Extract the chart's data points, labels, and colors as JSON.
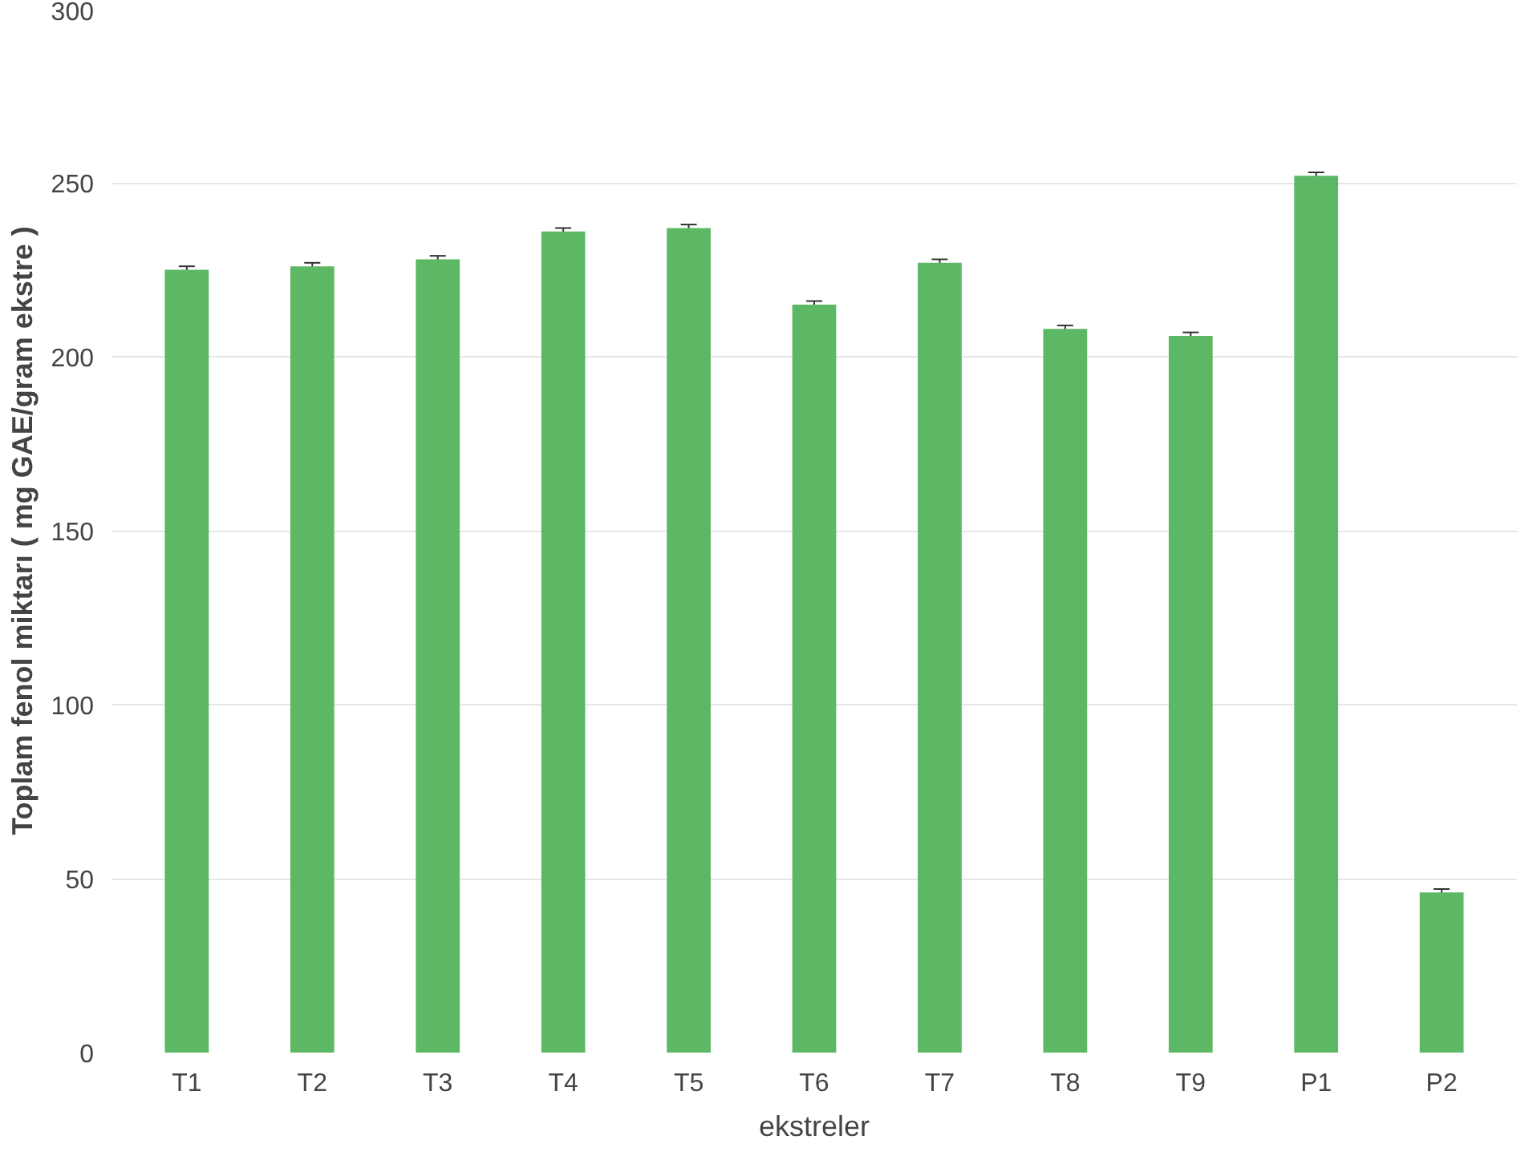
{
  "chart_data": {
    "type": "bar",
    "xlabel": "ekstreler",
    "ylabel": "Toplam fenol miktarı ( mg GAE/gram ekstre )",
    "categories": [
      "T1",
      "T2",
      "T3",
      "T4",
      "T5",
      "T6",
      "T7",
      "T8",
      "T9",
      "P1",
      "P2"
    ],
    "values": [
      225,
      226,
      228,
      236,
      237,
      215,
      227,
      208,
      206,
      252,
      46
    ],
    "errors": [
      1,
      1,
      1,
      1,
      1,
      1,
      1,
      1,
      1,
      1,
      1
    ],
    "color": "#5cb865",
    "ylim": [
      0,
      300
    ],
    "yticks": [
      0,
      50,
      100,
      150,
      200,
      250,
      300
    ],
    "grid": "y"
  }
}
